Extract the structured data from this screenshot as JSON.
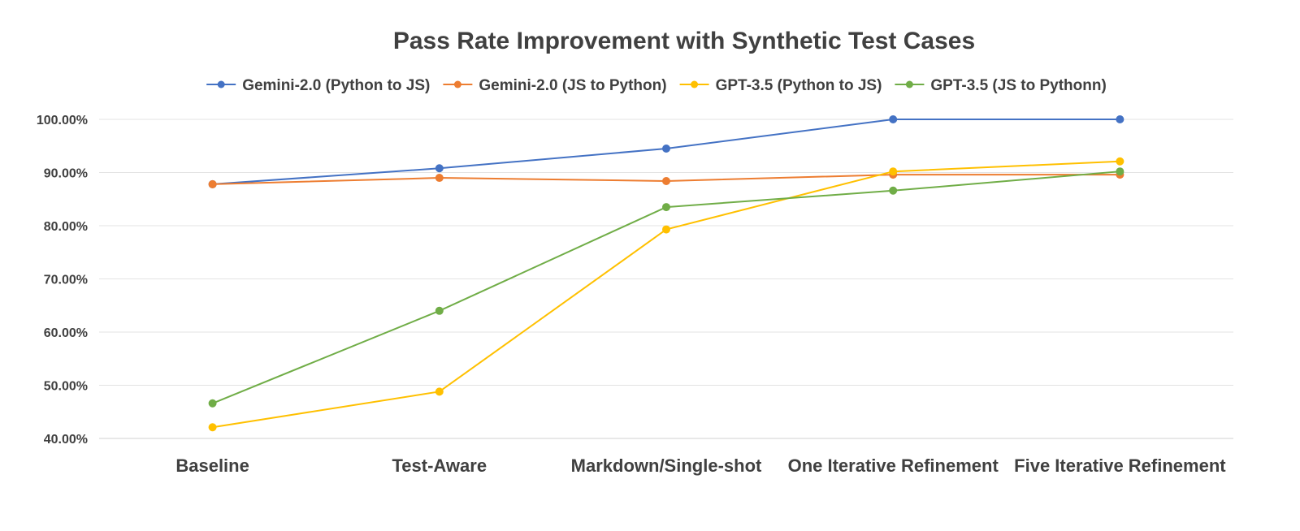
{
  "chart_data": {
    "type": "line",
    "title": "Pass Rate Improvement with Synthetic Test Cases",
    "xlabel": "",
    "ylabel": "",
    "categories": [
      "Baseline",
      "Test-Aware",
      "Markdown/Single-shot",
      "One Iterative Refinement",
      "Five Iterative Refinement"
    ],
    "ylim": [
      40,
      100
    ],
    "yticks": [
      40,
      50,
      60,
      70,
      80,
      90,
      100
    ],
    "ytick_labels": [
      "40.00%",
      "50.00%",
      "60.00%",
      "70.00%",
      "80.00%",
      "90.00%",
      "100.00%"
    ],
    "grid": true,
    "legend_position": "top",
    "series": [
      {
        "name": "Gemini-2.0 (Python to JS)",
        "color": "#4472C4",
        "values": [
          87.8,
          90.8,
          94.5,
          100.0,
          100.0
        ]
      },
      {
        "name": "Gemini-2.0 (JS to Python)",
        "color": "#ED7D31",
        "values": [
          87.8,
          89.0,
          88.4,
          89.6,
          89.6
        ]
      },
      {
        "name": "GPT-3.5 (Python to JS)",
        "color": "#FFC000",
        "values": [
          42.1,
          48.8,
          79.3,
          90.2,
          92.1
        ]
      },
      {
        "name": "GPT-3.5 (JS to Pythonn)",
        "color": "#70AD47",
        "values": [
          46.6,
          64.0,
          83.5,
          86.6,
          90.2
        ]
      }
    ]
  }
}
